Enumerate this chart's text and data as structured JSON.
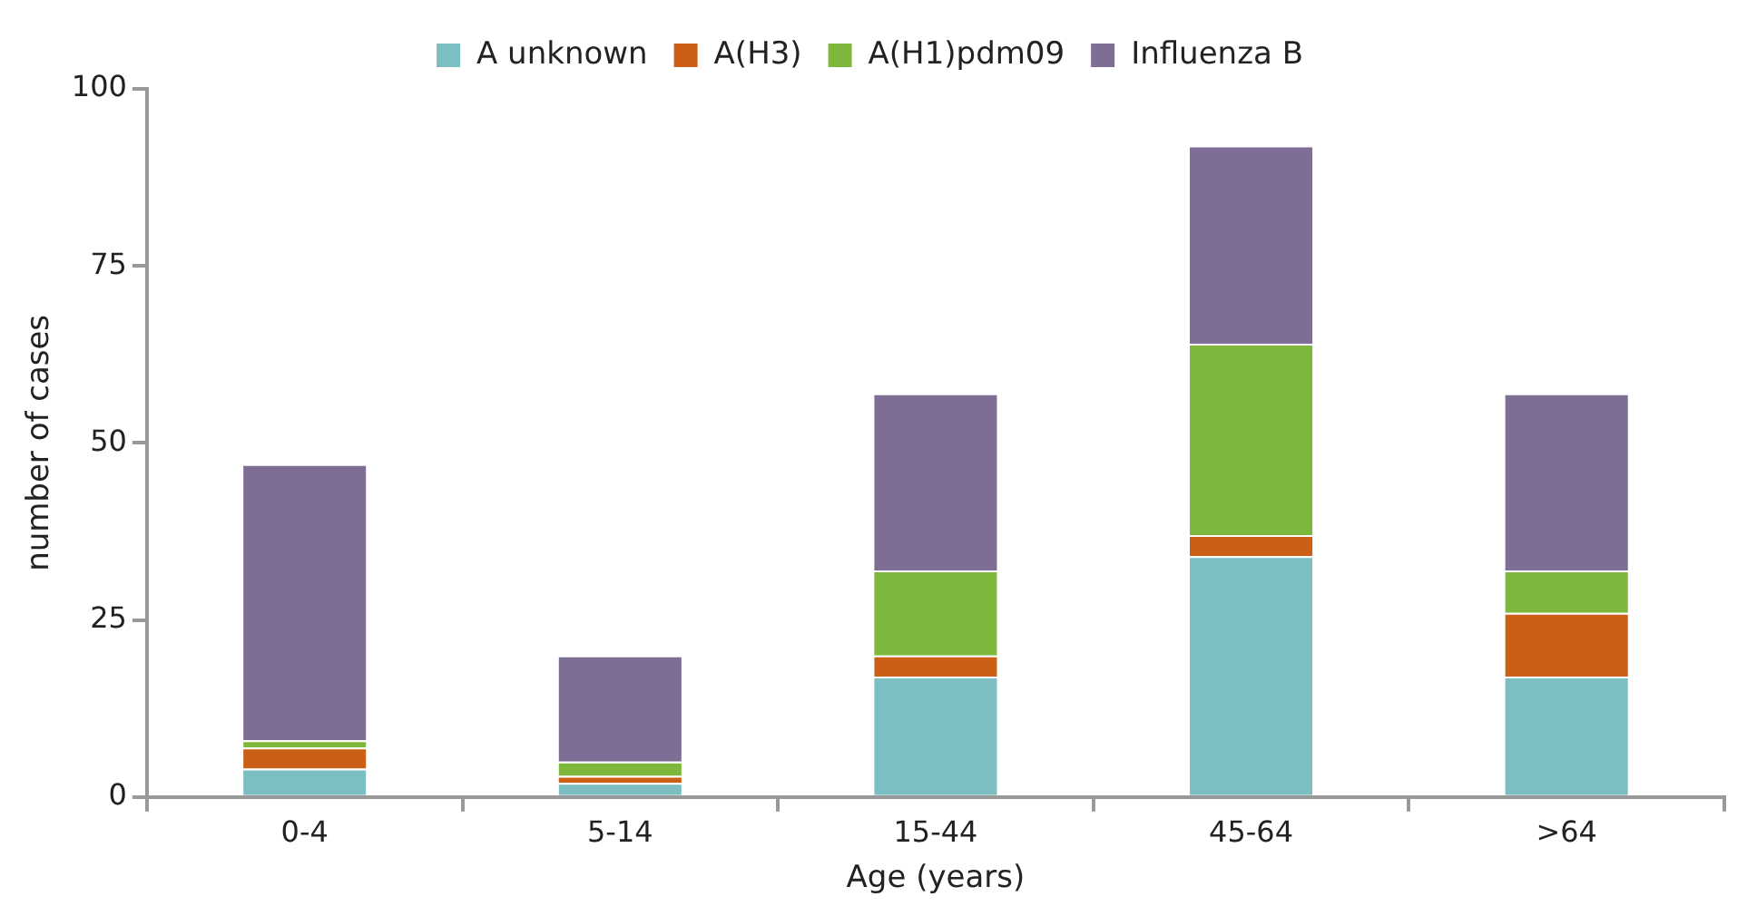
{
  "chart_data": {
    "type": "bar",
    "stacked": true,
    "xlabel": "Age (years)",
    "ylabel": "number of cases",
    "categories": [
      "0-4",
      "5-14",
      "15-44",
      "45-64",
      ">64"
    ],
    "series": [
      {
        "name": "A unknown",
        "color": "#7dbec3",
        "values": [
          4,
          2,
          17,
          34,
          17
        ]
      },
      {
        "name": "A(H3)",
        "color": "#cb5f15",
        "values": [
          3,
          1,
          3,
          3,
          9
        ]
      },
      {
        "name": "A(H1)pdm09",
        "color": "#7db83c",
        "values": [
          1,
          2,
          12,
          27,
          6
        ]
      },
      {
        "name": "Influenza B",
        "color": "#7e6e96",
        "values": [
          39,
          15,
          25,
          28,
          25
        ]
      }
    ],
    "ylim": [
      0,
      100
    ],
    "yticks": [
      0,
      25,
      50,
      75,
      100
    ],
    "grid": false,
    "legend": "top"
  }
}
